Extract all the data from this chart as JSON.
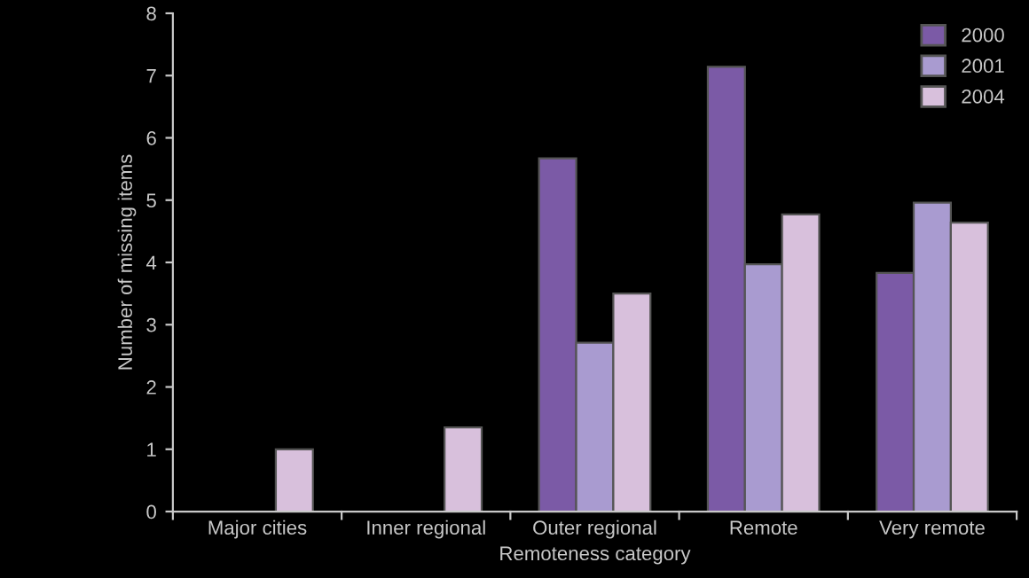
{
  "chart_data": {
    "type": "bar",
    "xlabel": "Remoteness category",
    "ylabel": "Number of missing items",
    "categories": [
      "Major cities",
      "Inner regional",
      "Outer regional",
      "Remote",
      "Very remote"
    ],
    "series": [
      {
        "name": "2000",
        "color": "#7b5aa6",
        "values": [
          null,
          null,
          5.67,
          7.14,
          3.83
        ]
      },
      {
        "name": "2001",
        "color": "#a99bd0",
        "values": [
          null,
          null,
          2.71,
          3.97,
          4.96
        ]
      },
      {
        "name": "2004",
        "color": "#d8c0dc",
        "values": [
          1.0,
          1.35,
          3.5,
          4.77,
          4.64
        ]
      }
    ],
    "ylim": [
      0,
      8
    ],
    "yticks": [
      0,
      1,
      2,
      3,
      4,
      5,
      6,
      7,
      8
    ],
    "grid": false,
    "legend": "top right"
  }
}
